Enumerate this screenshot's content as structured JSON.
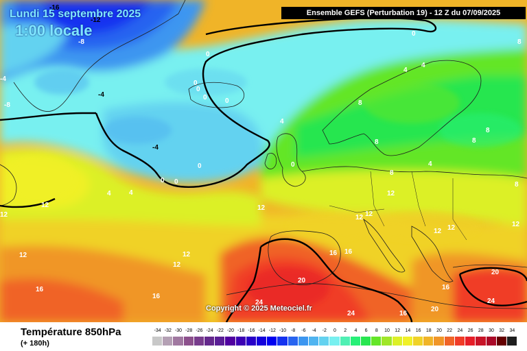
{
  "header": {
    "date": "Lundi 15 septembre 2025",
    "time": "1:00 locale",
    "model_run": "Ensemble GEFS  (Perturbation 19)  -  12 Z du 07/09/2025"
  },
  "footer": {
    "field": "Température 850hPa",
    "lead_time": "(+ 180h)",
    "copyright": "Copyright © 2025 Meteociel.fr"
  },
  "legend": {
    "labels": [
      "-34",
      "-32",
      "-30",
      "-28",
      "-26",
      "-24",
      "-22",
      "-20",
      "-18",
      "-16",
      "-14",
      "-12",
      "-10",
      "-8",
      "-6",
      "-4",
      "-2",
      "0",
      "2",
      "4",
      "6",
      "8",
      "10",
      "12",
      "14",
      "16",
      "18",
      "20",
      "22",
      "24",
      "26",
      "28",
      "30",
      "32",
      "34"
    ],
    "colors": [
      "#c8c8c8",
      "#b4a0b4",
      "#a078a0",
      "#8c508c",
      "#783c8c",
      "#64288c",
      "#5a1e96",
      "#5000a0",
      "#3c00b4",
      "#2800c8",
      "#1400dc",
      "#0000f0",
      "#1432f0",
      "#2864f0",
      "#3c96f0",
      "#50b4f0",
      "#64d2f0",
      "#78f0f0",
      "#50f0b4",
      "#28f078",
      "#28e650",
      "#64e628",
      "#a0e628",
      "#dcf028",
      "#f0f028",
      "#f0d228",
      "#f0b428",
      "#f09628",
      "#f06428",
      "#f03c28",
      "#e61e28",
      "#c81428",
      "#aa0a28",
      "#640000",
      "#1e1e1e"
    ]
  },
  "map_labels": [
    {
      "text": "-16",
      "color": "black"
    },
    {
      "text": "-12",
      "color": "black"
    },
    {
      "text": "-8",
      "color": "white"
    },
    {
      "text": "-8",
      "color": "white"
    },
    {
      "text": "-4",
      "color": "white"
    },
    {
      "text": "-4",
      "color": "black"
    },
    {
      "text": "-4",
      "color": "black"
    },
    {
      "text": "0",
      "color": "white"
    },
    {
      "text": "0",
      "color": "white"
    },
    {
      "text": "0",
      "color": "white"
    },
    {
      "text": "0",
      "color": "white"
    },
    {
      "text": "0",
      "color": "white"
    },
    {
      "text": "0",
      "color": "white"
    },
    {
      "text": "0",
      "color": "white"
    },
    {
      "text": "0",
      "color": "white"
    },
    {
      "text": "0",
      "color": "white"
    },
    {
      "text": "0",
      "color": "white"
    },
    {
      "text": "4",
      "color": "white"
    },
    {
      "text": "4",
      "color": "white"
    },
    {
      "text": "4",
      "color": "white"
    },
    {
      "text": "4",
      "color": "white"
    },
    {
      "text": "4",
      "color": "white"
    },
    {
      "text": "4",
      "color": "white"
    },
    {
      "text": "8",
      "color": "white"
    },
    {
      "text": "8",
      "color": "white"
    },
    {
      "text": "8",
      "color": "white"
    },
    {
      "text": "8",
      "color": "white"
    },
    {
      "text": "8",
      "color": "white"
    },
    {
      "text": "8",
      "color": "white"
    },
    {
      "text": "8",
      "color": "white"
    },
    {
      "text": "12",
      "color": "white"
    },
    {
      "text": "12",
      "color": "white"
    },
    {
      "text": "12",
      "color": "white"
    },
    {
      "text": "12",
      "color": "white"
    },
    {
      "text": "12",
      "color": "white"
    },
    {
      "text": "12",
      "color": "white"
    },
    {
      "text": "12",
      "color": "white"
    },
    {
      "text": "12",
      "color": "white"
    },
    {
      "text": "12",
      "color": "white"
    },
    {
      "text": "12",
      "color": "white"
    },
    {
      "text": "12",
      "color": "white"
    },
    {
      "text": "12",
      "color": "white"
    },
    {
      "text": "16",
      "color": "white"
    },
    {
      "text": "16",
      "color": "white"
    },
    {
      "text": "16",
      "color": "white"
    },
    {
      "text": "16",
      "color": "white"
    },
    {
      "text": "16",
      "color": "white"
    },
    {
      "text": "16",
      "color": "white"
    },
    {
      "text": "20",
      "color": "white"
    },
    {
      "text": "20",
      "color": "white"
    },
    {
      "text": "20",
      "color": "white"
    },
    {
      "text": "24",
      "color": "white"
    },
    {
      "text": "24",
      "color": "white"
    },
    {
      "text": "24",
      "color": "white"
    }
  ]
}
